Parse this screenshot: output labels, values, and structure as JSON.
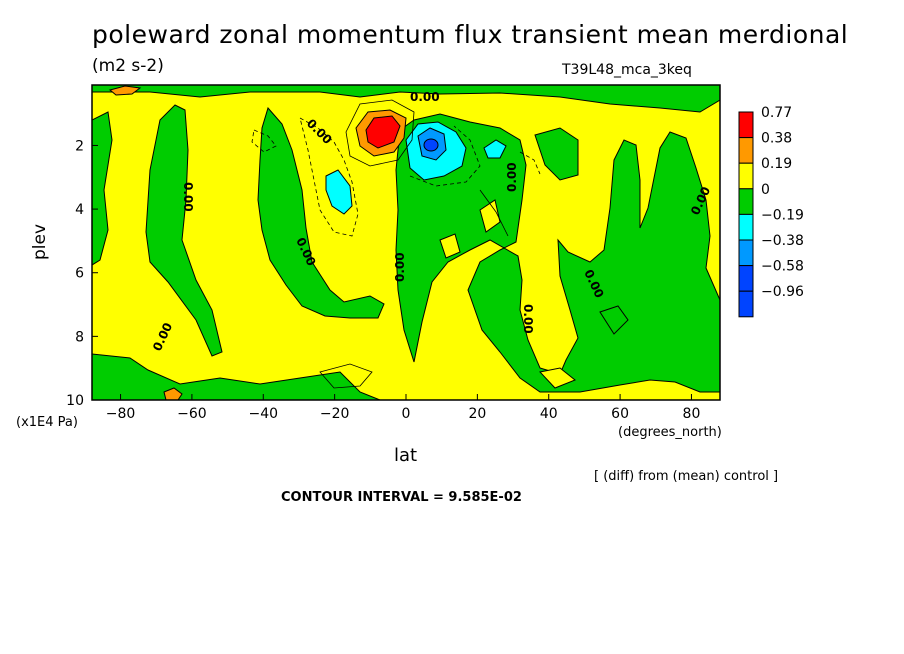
{
  "header": {
    "title": "poleward zonal momentum flux transient mean merdional",
    "units": "(m2 s-2)",
    "experiment": "T39L48_mca_3keq"
  },
  "footer": {
    "diff_note": "[ (diff) from (mean) control ]",
    "contour_interval": "CONTOUR INTERVAL = 9.585E-02"
  },
  "chart_data": {
    "type": "contour",
    "title": "poleward zonal momentum flux transient mean merdional",
    "units": "(m2 s-2)",
    "xlabel": "lat",
    "xunit": "(degrees_north)",
    "ylabel": "plev",
    "yunit": "(x1E4 Pa)",
    "xlim": [
      -88,
      88
    ],
    "ylim": [
      10,
      0.1
    ],
    "x_ticks": [
      -80,
      -60,
      -40,
      -20,
      0,
      20,
      40,
      60,
      80
    ],
    "y_ticks": [
      2,
      4,
      6,
      8,
      10
    ],
    "zero_contour_label": "0.00",
    "legend_levels": [
      {
        "label": "0.77",
        "color": "#ff0000"
      },
      {
        "label": "0.38",
        "color": "#ff9900"
      },
      {
        "label": "0.19",
        "color": "#ffff00"
      },
      {
        "label": "0",
        "color": "#00cc00"
      },
      {
        "label": "-0.19",
        "color": "#00ffff"
      },
      {
        "label": "-0.38",
        "color": "#0099ff"
      },
      {
        "label": "-0.58",
        "color": "#0044ff"
      },
      {
        "label": "-0.96",
        "color": "#0044ff"
      }
    ],
    "features": [
      {
        "lat": -7,
        "plev": 1.6,
        "value": 0.77,
        "sign": "positive max"
      },
      {
        "lat": 7,
        "plev": 2.0,
        "value": -0.58,
        "sign": "negative min"
      },
      {
        "lat": -19,
        "plev": 3.5,
        "value": -0.19,
        "sign": "negative"
      }
    ]
  }
}
